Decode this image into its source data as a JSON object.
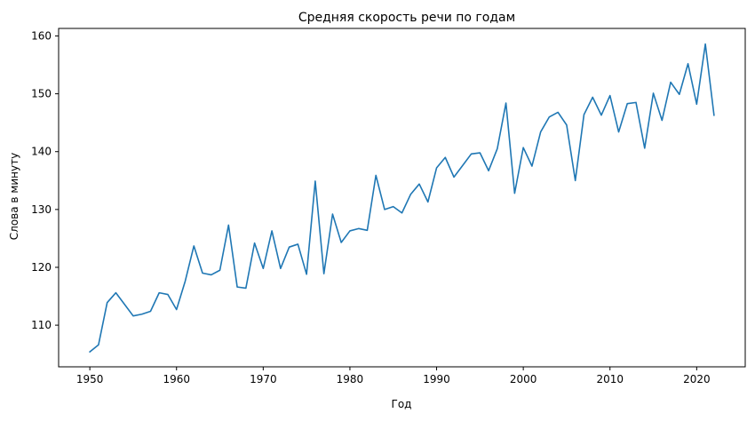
{
  "chart_data": {
    "type": "line",
    "title": "Средняя скорость речи по годам",
    "xlabel": "Год",
    "ylabel": "Слова в минуту",
    "xlim": [
      1946.4,
      2025.6
    ],
    "ylim": [
      102.8,
      161.3
    ],
    "grid": false,
    "x_ticks": [
      1950,
      1960,
      1970,
      1980,
      1990,
      2000,
      2010,
      2020
    ],
    "y_ticks": [
      110,
      120,
      130,
      140,
      150,
      160
    ],
    "series": [
      {
        "color": "#1f77b4",
        "points": [
          [
            1950,
            105.4
          ],
          [
            1951,
            106.6
          ],
          [
            1952,
            113.9
          ],
          [
            1953,
            115.6
          ],
          [
            1954,
            113.6
          ],
          [
            1955,
            111.6
          ],
          [
            1956,
            111.9
          ],
          [
            1957,
            112.4
          ],
          [
            1958,
            115.6
          ],
          [
            1959,
            115.3
          ],
          [
            1960,
            112.7
          ],
          [
            1961,
            117.6
          ],
          [
            1962,
            123.7
          ],
          [
            1963,
            119.0
          ],
          [
            1964,
            118.7
          ],
          [
            1965,
            119.5
          ],
          [
            1966,
            127.3
          ],
          [
            1967,
            116.6
          ],
          [
            1968,
            116.4
          ],
          [
            1969,
            124.2
          ],
          [
            1970,
            119.8
          ],
          [
            1971,
            126.3
          ],
          [
            1972,
            119.8
          ],
          [
            1973,
            123.5
          ],
          [
            1974,
            124.0
          ],
          [
            1975,
            118.8
          ],
          [
            1976,
            134.9
          ],
          [
            1977,
            118.9
          ],
          [
            1978,
            129.2
          ],
          [
            1979,
            124.3
          ],
          [
            1980,
            126.3
          ],
          [
            1981,
            126.7
          ],
          [
            1982,
            126.4
          ],
          [
            1983,
            135.9
          ],
          [
            1984,
            130.0
          ],
          [
            1985,
            130.5
          ],
          [
            1986,
            129.4
          ],
          [
            1987,
            132.6
          ],
          [
            1988,
            134.4
          ],
          [
            1989,
            131.3
          ],
          [
            1990,
            137.2
          ],
          [
            1991,
            139.0
          ],
          [
            1992,
            135.6
          ],
          [
            1993,
            137.6
          ],
          [
            1994,
            139.6
          ],
          [
            1995,
            139.8
          ],
          [
            1996,
            136.7
          ],
          [
            1997,
            140.5
          ],
          [
            1998,
            148.4
          ],
          [
            1999,
            132.8
          ],
          [
            2000,
            140.7
          ],
          [
            2001,
            137.5
          ],
          [
            2002,
            143.4
          ],
          [
            2003,
            146.0
          ],
          [
            2004,
            146.8
          ],
          [
            2005,
            144.6
          ],
          [
            2006,
            135.0
          ],
          [
            2007,
            146.4
          ],
          [
            2008,
            149.4
          ],
          [
            2009,
            146.3
          ],
          [
            2010,
            149.7
          ],
          [
            2011,
            143.4
          ],
          [
            2012,
            148.3
          ],
          [
            2013,
            148.5
          ],
          [
            2014,
            140.6
          ],
          [
            2015,
            150.1
          ],
          [
            2016,
            145.4
          ],
          [
            2017,
            152.0
          ],
          [
            2018,
            149.9
          ],
          [
            2019,
            155.2
          ],
          [
            2020,
            148.2
          ],
          [
            2021,
            158.6
          ],
          [
            2022,
            146.3
          ]
        ]
      }
    ]
  }
}
